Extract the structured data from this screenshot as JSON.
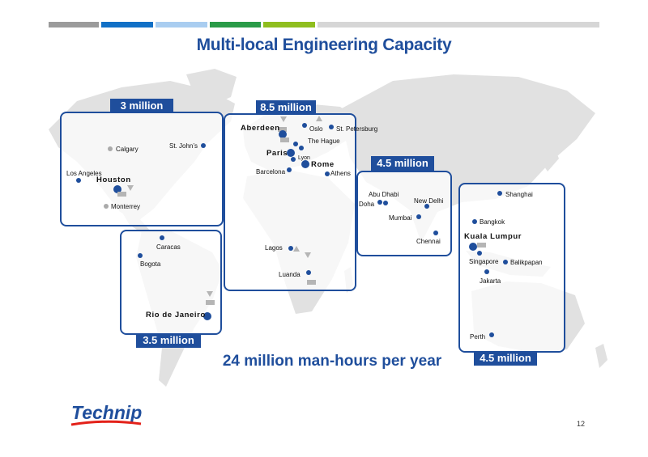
{
  "slide": {
    "title": "Multi-local Engineering Capacity",
    "footer_text": "24 million man-hours per year",
    "page_number": "12",
    "logo_text": "Technip"
  },
  "colors": {
    "brand_blue": "#1f4e9c",
    "map_grey": "#e1e1e1",
    "top_bar": [
      "#9b9b9b",
      "#1170c6",
      "#a9cdf0",
      "#2a9b48",
      "#8fbe1f",
      "#d6d6d6"
    ]
  },
  "regions": [
    {
      "id": "north-america",
      "capacity": "3 million",
      "cities": [
        {
          "name": "Calgary",
          "marker": "grey"
        },
        {
          "name": "St. John’s",
          "marker": "blue"
        },
        {
          "name": "Los Angeles",
          "marker": "blue"
        },
        {
          "name": "Houston",
          "marker": "big"
        },
        {
          "name": "Monterrey",
          "marker": "grey"
        }
      ]
    },
    {
      "id": "south-america",
      "capacity": "3.5 million",
      "cities": [
        {
          "name": "Caracas",
          "marker": "blue"
        },
        {
          "name": "Bogota",
          "marker": "blue"
        },
        {
          "name": "Rio de Janeiro",
          "marker": "big"
        }
      ]
    },
    {
      "id": "europe-africa",
      "capacity": "8.5 million",
      "cities": [
        {
          "name": "Aberdeen",
          "marker": "big"
        },
        {
          "name": "Oslo",
          "marker": "blue"
        },
        {
          "name": "St. Petersburg",
          "marker": "blue"
        },
        {
          "name": "The Hague",
          "marker": "blue"
        },
        {
          "name": "Paris",
          "marker": "big"
        },
        {
          "name": "Lyon",
          "marker": "blue"
        },
        {
          "name": "Rome",
          "marker": "big"
        },
        {
          "name": "Barcelona",
          "marker": "blue"
        },
        {
          "name": "Athens",
          "marker": "blue"
        },
        {
          "name": "Lagos",
          "marker": "blue"
        },
        {
          "name": "Luanda",
          "marker": "blue"
        }
      ]
    },
    {
      "id": "middle-east-india",
      "capacity": "4.5 million",
      "cities": [
        {
          "name": "Abu Dhabi",
          "marker": "blue"
        },
        {
          "name": "Doha",
          "marker": "blue"
        },
        {
          "name": "New Delhi",
          "marker": "blue"
        },
        {
          "name": "Mumbai",
          "marker": "blue"
        },
        {
          "name": "Chennai",
          "marker": "blue"
        }
      ]
    },
    {
      "id": "asia-pacific",
      "capacity": "4.5 million",
      "cities": [
        {
          "name": "Shanghai",
          "marker": "blue"
        },
        {
          "name": "Bangkok",
          "marker": "blue"
        },
        {
          "name": "Kuala Lumpur",
          "marker": "big"
        },
        {
          "name": "Singapore",
          "marker": "blue"
        },
        {
          "name": "Balikpapan",
          "marker": "blue"
        },
        {
          "name": "Jakarta",
          "marker": "blue"
        },
        {
          "name": "Perth",
          "marker": "blue"
        }
      ]
    }
  ]
}
